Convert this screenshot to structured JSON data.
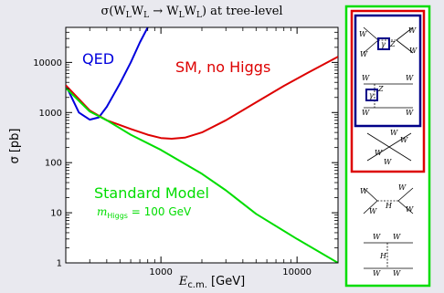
{
  "chart_data": {
    "type": "line",
    "title": "σ(W_L W_L → W_L W_L) at tree-level",
    "xlabel": "E_c.m. [GeV]",
    "ylabel": "σ [pb]",
    "x_scale": "log",
    "y_scale": "log",
    "xlim": [
      200,
      20000
    ],
    "ylim": [
      1,
      50000
    ],
    "x_ticks": [
      1000,
      10000
    ],
    "x_tick_labels": [
      "1000",
      "10000"
    ],
    "y_ticks": [
      1,
      10,
      100,
      1000,
      10000
    ],
    "y_tick_labels": [
      "1",
      "10",
      "100",
      "1000",
      "10000"
    ],
    "grid": false,
    "series": [
      {
        "name": "QED",
        "color": "#0000dd",
        "x": [
          200,
          250,
          300,
          350,
          400,
          500,
          600,
          700,
          800
        ],
        "y": [
          3500,
          1000,
          720,
          800,
          1300,
          3800,
          10000,
          25000,
          50000
        ]
      },
      {
        "name": "SM, no Higgs",
        "color": "#dd0000",
        "x": [
          200,
          300,
          400,
          600,
          800,
          1000,
          1200,
          1500,
          2000,
          3000,
          5000,
          8000,
          12000,
          20000
        ],
        "y": [
          3500,
          1100,
          700,
          470,
          360,
          310,
          300,
          315,
          400,
          700,
          1600,
          3400,
          6200,
          13000
        ]
      },
      {
        "name": "Standard Model m_Higgs = 100 GeV",
        "color": "#00dd00",
        "x": [
          200,
          300,
          400,
          600,
          1000,
          2000,
          3000,
          5000,
          10000,
          20000
        ],
        "y": [
          3100,
          1050,
          700,
          360,
          180,
          60,
          28,
          9.5,
          3,
          1
        ]
      }
    ],
    "annotations": [
      {
        "text": "QED",
        "color": "#0000dd"
      },
      {
        "text": "SM, no Higgs",
        "color": "#dd0000"
      },
      {
        "text": "Standard Model",
        "color": "#00dd00"
      },
      {
        "text": "m_Higgs = 100 GeV",
        "color": "#00dd00"
      }
    ]
  },
  "diagrams": {
    "outer_color": "#00dd00",
    "red_color": "#dd0000",
    "blue_color": "#000088",
    "photon_label": "γ",
    "z_label": "Z",
    "w_label": "W",
    "h_label": "H"
  }
}
